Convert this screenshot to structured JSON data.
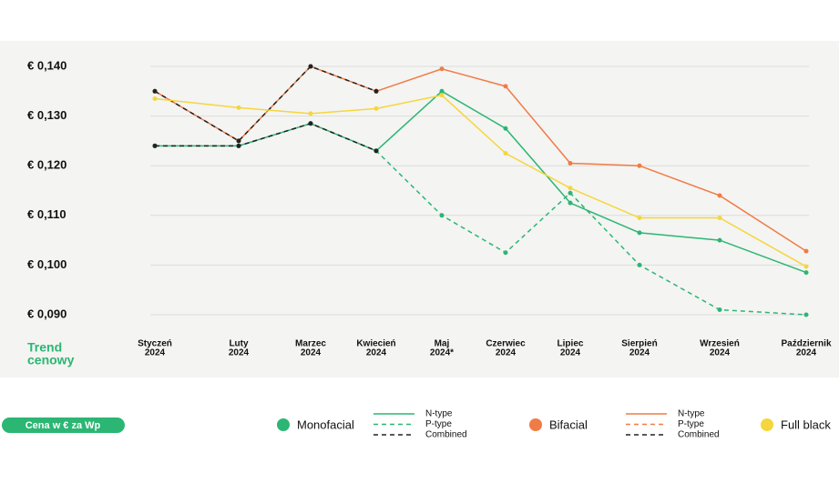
{
  "chart_data": {
    "type": "line",
    "x_label": [
      "Trend",
      "cenowy"
    ],
    "badge": "Cena w € za Wp",
    "categories": [
      [
        "Styczeń",
        "2024"
      ],
      [
        "Luty",
        "2024"
      ],
      [
        "Marzec",
        "2024"
      ],
      [
        "Kwiecień",
        "2024"
      ],
      [
        "Maj",
        "2024*"
      ],
      [
        "Czerwiec",
        "2024"
      ],
      [
        "Lipiec",
        "2024"
      ],
      [
        "Sierpień",
        "2024"
      ],
      [
        "Wrzesień",
        "2024"
      ],
      [
        "Październik",
        "2024"
      ]
    ],
    "ylim": [
      0.09,
      0.14
    ],
    "yticks": [
      {
        "value": 0.14,
        "label": "€ 0,140"
      },
      {
        "value": 0.13,
        "label": "€ 0,130"
      },
      {
        "value": 0.12,
        "label": "€ 0,120"
      },
      {
        "value": 0.11,
        "label": "€ 0,110"
      },
      {
        "value": 0.1,
        "label": "€ 0,100"
      },
      {
        "value": 0.09,
        "label": "€ 0,090"
      }
    ],
    "grid": true,
    "groups": [
      {
        "name": "Monofacial",
        "color": "#2bb673",
        "series": [
          {
            "name": "N-type",
            "color": "#2bb673",
            "style": "solid",
            "values": [
              0.124,
              0.124,
              0.1285,
              0.123,
              0.135,
              0.1275,
              0.1125,
              0.1065,
              0.105,
              0.0985
            ]
          },
          {
            "name": "P-type",
            "color": "#2bb673",
            "style": "dashed",
            "values": [
              0.124,
              0.124,
              0.1285,
              0.123,
              0.11,
              0.1025,
              0.1145,
              0.1,
              0.091,
              0.09
            ]
          },
          {
            "name": "Combined",
            "color": "#222222",
            "style": "dashed",
            "values": [
              0.124,
              0.124,
              0.1285,
              0.123,
              null,
              null,
              null,
              null,
              null,
              null
            ]
          }
        ]
      },
      {
        "name": "Bifacial",
        "color": "#f07c45",
        "series": [
          {
            "name": "N-type",
            "color": "#f07c45",
            "style": "solid",
            "values": [
              0.135,
              0.125,
              0.14,
              0.135,
              0.1395,
              0.136,
              0.1205,
              0.12,
              0.114,
              0.1028
            ]
          },
          {
            "name": "P-type",
            "color": "#f07c45",
            "style": "dashed",
            "values": [
              null,
              null,
              null,
              null,
              null,
              null,
              null,
              null,
              null,
              null
            ]
          },
          {
            "name": "Combined",
            "color": "#222222",
            "style": "dashed",
            "values": [
              0.135,
              0.125,
              0.14,
              0.135,
              null,
              null,
              null,
              null,
              null,
              null
            ]
          }
        ]
      },
      {
        "name": "Full black",
        "color": "#f5d63d",
        "series": [
          {
            "color": "#f5d63d",
            "style": "solid",
            "values": [
              0.1335,
              0.1317,
              0.1305,
              0.1315,
              0.1342,
              0.1225,
              0.1155,
              0.1095,
              0.1095,
              0.0997
            ]
          }
        ]
      }
    ]
  }
}
